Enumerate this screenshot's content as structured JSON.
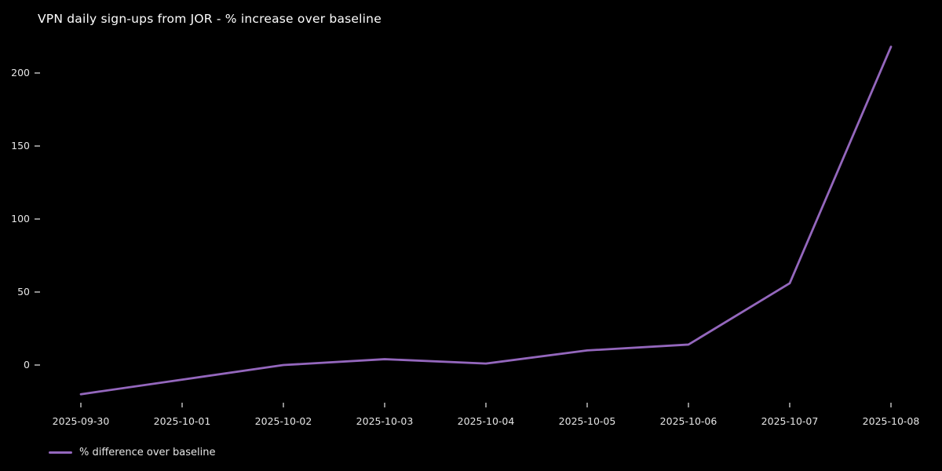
{
  "chart_data": {
    "type": "line",
    "title": "VPN daily sign-ups from JOR - % increase over baseline",
    "categories": [
      "2025-09-30",
      "2025-10-01",
      "2025-10-02",
      "2025-10-03",
      "2025-10-04",
      "2025-10-05",
      "2025-10-06",
      "2025-10-07",
      "2025-10-08"
    ],
    "series": [
      {
        "name": "% difference over baseline",
        "values": [
          -20,
          -10,
          0,
          4,
          1,
          10,
          14,
          56,
          218
        ]
      }
    ],
    "yticks": [
      0,
      50,
      100,
      150,
      200
    ],
    "ylim": [
      -35,
      250
    ],
    "xlabel": "",
    "ylabel": "",
    "grid": false,
    "legend": {
      "label": "% difference over baseline",
      "position": "bottom-left"
    }
  },
  "colors": {
    "background": "#000000",
    "line": "#9467bd",
    "title_text": "#ffffff",
    "tick_text": "#e6e6e6",
    "tick_mark": "#c9c9c9"
  }
}
